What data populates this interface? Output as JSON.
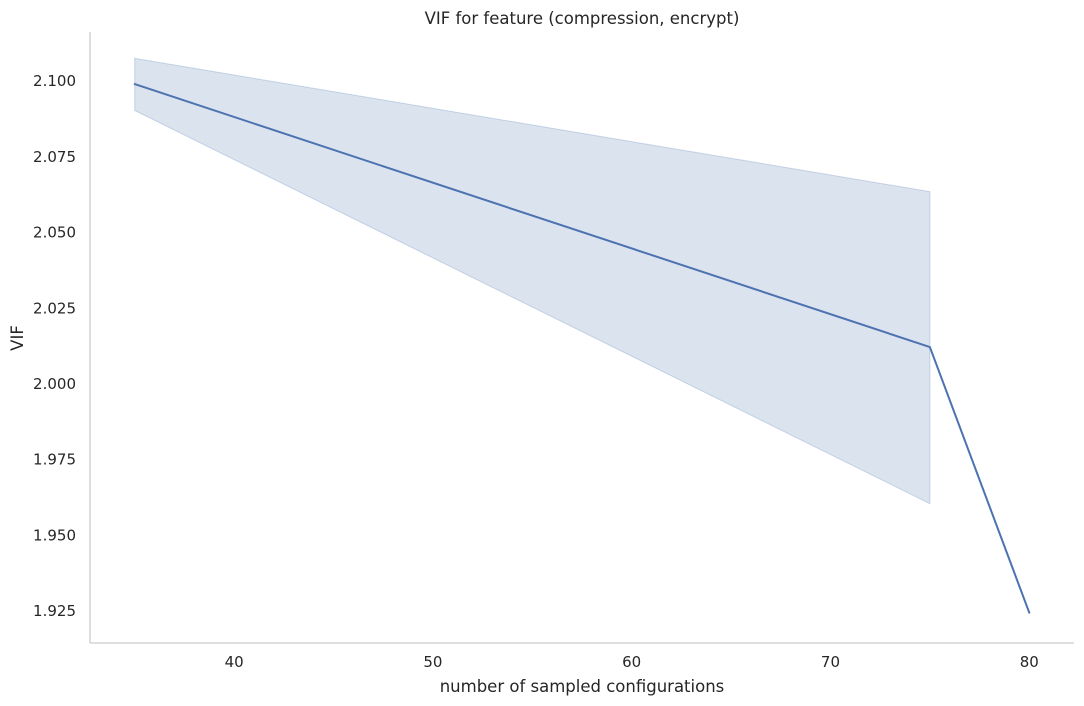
{
  "chart_data": {
    "type": "line",
    "title": "VIF for feature (compression, encrypt)",
    "xlabel": "number of sampled configurations",
    "ylabel": "VIF",
    "xlim": [
      32.75,
      82.25
    ],
    "ylim": [
      1.9145,
      2.1162
    ],
    "x_ticks": [
      40,
      50,
      60,
      70,
      80
    ],
    "y_ticks": [
      1.925,
      1.95,
      1.975,
      2.0,
      2.025,
      2.05,
      2.075,
      2.1
    ],
    "y_tick_labels": [
      "1.925",
      "1.950",
      "1.975",
      "2.000",
      "2.025",
      "2.050",
      "2.075",
      "2.100"
    ],
    "grid": false,
    "series": [
      {
        "x": [
          35,
          75,
          80
        ],
        "y": [
          2.099,
          2.0122,
          1.9245
        ],
        "ci_lower": [
          2.0903,
          1.9605,
          null
        ],
        "ci_upper": [
          2.1075,
          2.0635,
          null
        ],
        "color": "#4c72b0",
        "band_color": "#4c72b0"
      }
    ]
  }
}
